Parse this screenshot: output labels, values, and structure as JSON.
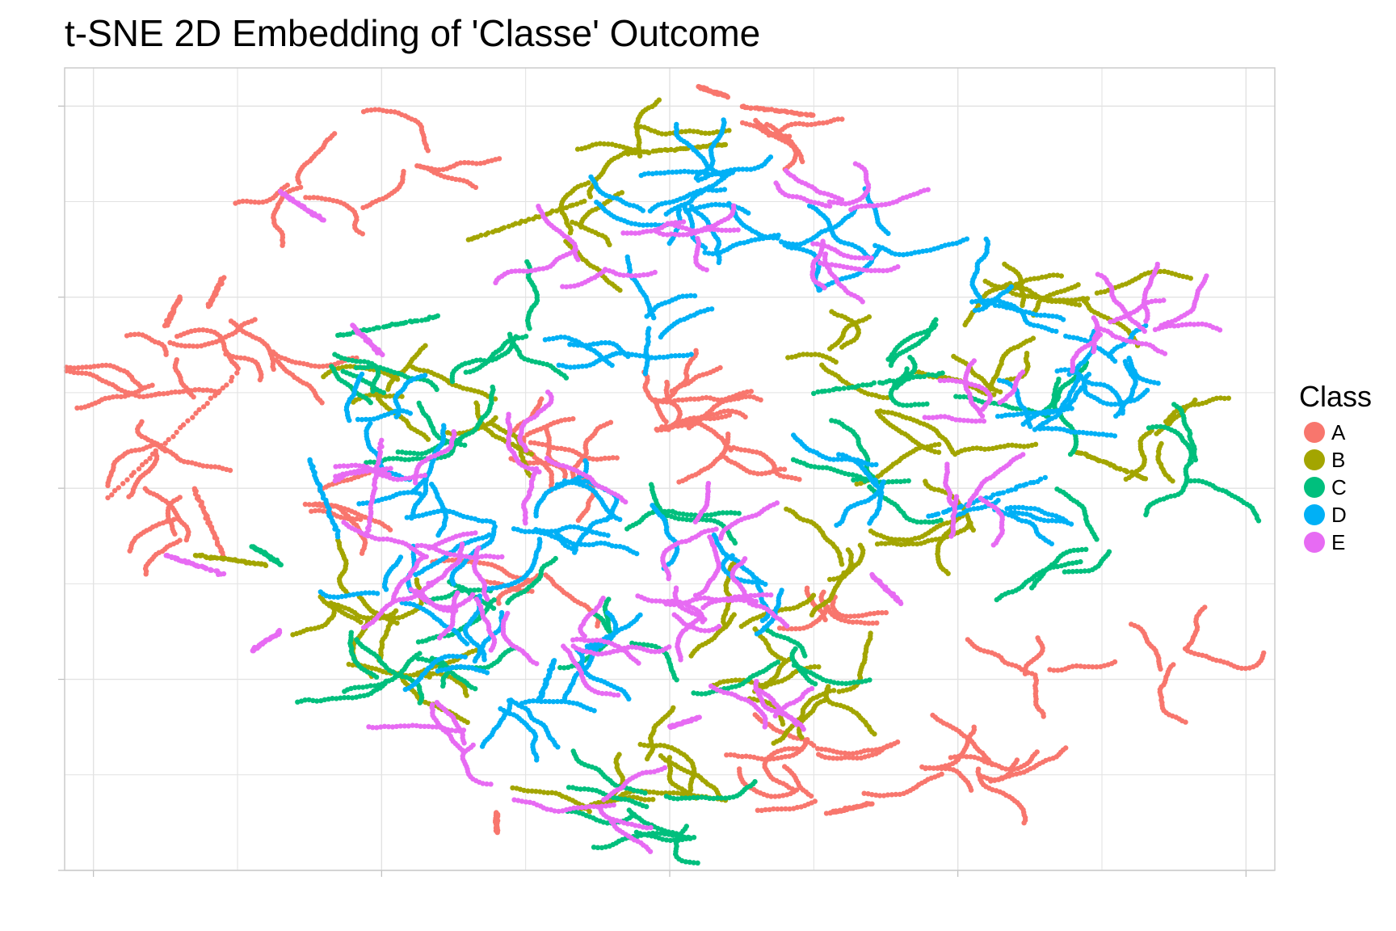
{
  "chart_data": {
    "type": "scatter",
    "title": "t-SNE 2D Embedding of 'Classe' Outcome",
    "xlabel": "",
    "ylabel": "",
    "xlim": [
      -42,
      42
    ],
    "ylim": [
      -40,
      44
    ],
    "grid": true,
    "legend": {
      "title": "Class",
      "placement": "right"
    },
    "series": [
      {
        "name": "A",
        "color": "#F8766D",
        "clusters": [
          [
            -36,
            4
          ],
          [
            -35,
            -5
          ],
          [
            -28,
            13
          ],
          [
            -34,
            15
          ],
          [
            -36,
            10
          ],
          [
            -25,
            -1
          ],
          [
            -9,
            -10
          ],
          [
            -10,
            6
          ],
          [
            -7,
            1
          ],
          [
            0,
            9
          ],
          [
            0,
            6
          ],
          [
            25,
            -19
          ],
          [
            35,
            -17
          ],
          [
            4,
            5
          ],
          [
            11,
            -12
          ],
          [
            10,
            -27
          ],
          [
            10,
            -32
          ],
          [
            18,
            -29
          ],
          [
            -25,
            31
          ],
          [
            22,
            -30
          ],
          [
            -17,
            34
          ],
          [
            6,
            38
          ]
        ],
        "streaks": [
          [
            [
              -30,
              12
            ],
            [
              -39,
              -1
            ]
          ],
          [
            [
              -35,
              17
            ],
            [
              -34,
              20
            ]
          ],
          [
            [
              -32,
              19
            ],
            [
              -31,
              22
            ]
          ],
          [
            [
              -33,
              0
            ],
            [
              -31,
              -7
            ]
          ],
          [
            [
              14,
              -33
            ],
            [
              11,
              -34
            ]
          ],
          [
            [
              -12,
              -36
            ],
            [
              -12,
              -34
            ]
          ],
          [
            [
              2,
              42
            ],
            [
              4,
              41
            ]
          ],
          [
            [
              5,
              40
            ],
            [
              10,
              39
            ]
          ]
        ]
      },
      {
        "name": "B",
        "color": "#A3A500",
        "clusters": [
          [
            -20,
            10
          ],
          [
            -12,
            8
          ],
          [
            -7,
            27
          ],
          [
            -2,
            36
          ],
          [
            -17,
            -20
          ],
          [
            -20,
            -14
          ],
          [
            -24,
            -12
          ],
          [
            -5,
            -34
          ],
          [
            -1,
            -28
          ],
          [
            6,
            -22
          ],
          [
            5,
            -14
          ],
          [
            11,
            -21
          ],
          [
            12,
            -8
          ],
          [
            23,
            10
          ],
          [
            23,
            20
          ],
          [
            29,
            20
          ],
          [
            34,
            6
          ],
          [
            19,
            4
          ],
          [
            20,
            -4
          ],
          [
            11,
            13
          ]
        ],
        "streaks": [
          [
            [
              -33,
              -7
            ],
            [
              -28,
              -8
            ]
          ],
          [
            [
              -14,
              26
            ],
            [
              -6,
              30
            ]
          ],
          [
            [
              -3,
              35
            ],
            [
              4,
              36
            ]
          ],
          [
            [
              28,
              4
            ],
            [
              33,
              1
            ]
          ]
        ]
      },
      {
        "name": "C",
        "color": "#00BF7D",
        "clusters": [
          [
            -23,
            13
          ],
          [
            -17,
            -18
          ],
          [
            -13,
            -12
          ],
          [
            0,
            -3
          ],
          [
            -4,
            -16
          ],
          [
            16,
            13
          ],
          [
            14,
            1
          ],
          [
            30,
            -7
          ],
          [
            26,
            8
          ],
          [
            36,
            2
          ],
          [
            -10,
            16
          ],
          [
            -14,
            5
          ],
          [
            -1,
            -33
          ],
          [
            1,
            -36
          ],
          [
            8,
            -18
          ],
          [
            -20,
            -20
          ]
        ],
        "streaks": [
          [
            [
              -23,
              16
            ],
            [
              -16,
              18
            ]
          ],
          [
            [
              -29,
              -6
            ],
            [
              -27,
              -8
            ]
          ],
          [
            [
              10,
              10
            ],
            [
              19,
              12
            ]
          ]
        ]
      },
      {
        "name": "D",
        "color": "#00B0F6",
        "clusters": [
          [
            -21,
            7
          ],
          [
            -17,
            0
          ],
          [
            -12,
            -4
          ],
          [
            -14,
            -18
          ],
          [
            -11,
            -23
          ],
          [
            -3,
            -3
          ],
          [
            -1,
            17
          ],
          [
            -4,
            14
          ],
          [
            -1,
            28
          ],
          [
            1,
            30
          ],
          [
            2,
            33
          ],
          [
            8,
            26
          ],
          [
            14,
            26
          ],
          [
            7,
            -10
          ],
          [
            15,
            1
          ],
          [
            23,
            -3
          ],
          [
            26,
            6
          ],
          [
            28,
            12
          ],
          [
            22,
            19
          ],
          [
            31,
            14
          ],
          [
            -9,
            -4
          ],
          [
            -19,
            -11
          ],
          [
            -6,
            -16
          ]
        ],
        "streaks": [
          [
            [
              -25,
              3
            ],
            [
              -23,
              -5
            ]
          ],
          [
            [
              -9,
              -22
            ],
            [
              -8,
              -18
            ]
          ],
          [
            [
              18,
              -3
            ],
            [
              26,
              1
            ]
          ]
        ]
      },
      {
        "name": "E",
        "color": "#E76BF3",
        "clusters": [
          [
            -18,
            2
          ],
          [
            -17,
            -7
          ],
          [
            -13,
            -12
          ],
          [
            -7,
            -16
          ],
          [
            -14,
            -27
          ],
          [
            -4,
            -33
          ],
          [
            1,
            -14
          ],
          [
            6,
            -12
          ],
          [
            8,
            -25
          ],
          [
            3,
            -4
          ],
          [
            -6,
            24
          ],
          [
            1,
            27
          ],
          [
            10,
            25
          ],
          [
            11,
            30
          ],
          [
            22,
            8
          ],
          [
            30,
            17
          ],
          [
            33,
            17
          ],
          [
            21,
            -1
          ],
          [
            -16,
            -10
          ],
          [
            -10,
            2
          ]
        ],
        "streaks": [
          [
            [
              -27,
              31
            ],
            [
              -24,
              28
            ]
          ],
          [
            [
              -35,
              -7
            ],
            [
              -31,
              -9
            ]
          ],
          [
            [
              -29,
              -17
            ],
            [
              -27,
              -15
            ]
          ],
          [
            [
              -22,
              17
            ],
            [
              -20,
              14
            ]
          ],
          [
            [
              -20,
              5
            ],
            [
              -21,
              -5
            ]
          ],
          [
            [
              16,
              -12
            ],
            [
              14,
              -9
            ]
          ],
          [
            [
              0,
              -25
            ],
            [
              2,
              -24
            ]
          ]
        ]
      }
    ]
  }
}
